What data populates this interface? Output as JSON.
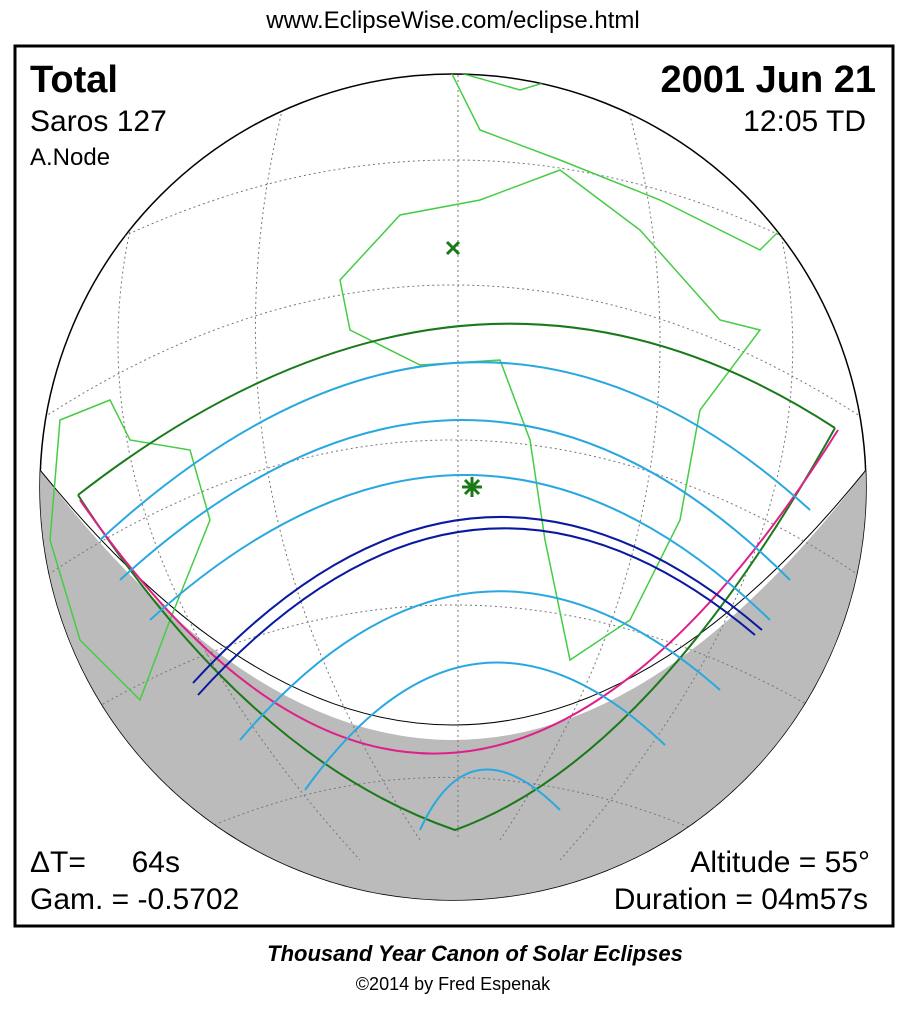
{
  "header": {
    "url": "www.EclipseWise.com/eclipse.html"
  },
  "panel": {
    "type": "Total",
    "saros": "Saros 127",
    "node": "A.Node",
    "date": "2001 Jun 21",
    "time": "12:05 TD",
    "delta_t_label": "ΔT=",
    "delta_t_value": "64s",
    "gamma": "Gam. = -0.5702",
    "altitude": "Altitude = 55°",
    "duration": "Duration = 04m57s"
  },
  "footer": {
    "title": "Thousand Year Canon of Solar Eclipses",
    "credit": "©2014 by Fred Espenak"
  }
}
